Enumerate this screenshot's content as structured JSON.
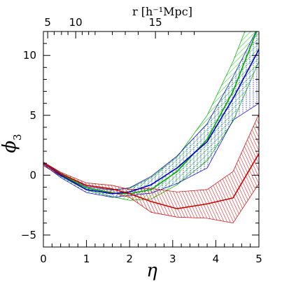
{
  "chart_data": {
    "type": "line",
    "xlabel": "η",
    "ylabel": "ϕ",
    "ylabel_sub": "3",
    "top_axis_label": "r [h⁻¹Mpc]",
    "xlim": [
      0,
      5
    ],
    "ylim": [
      -6,
      12
    ],
    "grid": false,
    "x_ticks": [
      0,
      1,
      2,
      3,
      4,
      5
    ],
    "y_ticks": [
      -5,
      0,
      5,
      10
    ],
    "top_ticks": [
      {
        "label": "5",
        "eta": 0.1
      },
      {
        "label": "10",
        "eta": 0.75
      },
      {
        "label": "15",
        "eta": 2.6
      }
    ],
    "series": [
      {
        "color": "#cc0000",
        "x": [
          0,
          0.4,
          1,
          1.6,
          2,
          2.5,
          3.1,
          3.8,
          4.4,
          5
        ],
        "values": [
          1.0,
          0.1,
          -0.85,
          -1.15,
          -1.55,
          -2.2,
          -2.8,
          -2.4,
          -1.9,
          1.8
        ],
        "band_lower": [
          0.8,
          -0.05,
          -1.05,
          -1.45,
          -1.85,
          -3.1,
          -3.5,
          -3.6,
          -4.0,
          -0.7
        ],
        "band_upper": [
          1.1,
          0.25,
          -0.65,
          -0.85,
          -1.2,
          -1.1,
          -1.4,
          -1.2,
          0.3,
          5.1
        ]
      },
      {
        "color": "#00aa00",
        "x": [
          0,
          0.4,
          1,
          1.6,
          2,
          2.5,
          3.1,
          3.8,
          4.4,
          5
        ],
        "values": [
          1.0,
          0.05,
          -1.05,
          -1.5,
          -1.55,
          -1.2,
          0.3,
          3.0,
          7.0,
          12.5
        ],
        "band_lower": [
          0.8,
          -0.1,
          -1.25,
          -1.8,
          -2.1,
          -2.0,
          -0.8,
          1.2,
          4.5,
          9.5
        ],
        "band_upper": [
          1.1,
          0.2,
          -0.85,
          -1.2,
          -1.1,
          -0.2,
          1.5,
          5.0,
          9.5,
          15.0
        ]
      },
      {
        "color": "#0000cc",
        "x": [
          0,
          0.4,
          1,
          1.6,
          2,
          2.5,
          3.1,
          3.8,
          4.4,
          5
        ],
        "values": [
          1.0,
          0.0,
          -1.2,
          -1.55,
          -1.4,
          -0.8,
          0.6,
          2.8,
          6.4,
          10.5
        ],
        "band_lower": [
          0.9,
          -0.2,
          -1.45,
          -1.85,
          -1.7,
          -1.5,
          -0.7,
          0.6,
          4.6,
          6.0
        ],
        "band_upper": [
          1.1,
          0.15,
          -0.95,
          -1.25,
          -1.05,
          -0.1,
          1.6,
          4.3,
          8.2,
          12.5
        ]
      }
    ]
  }
}
